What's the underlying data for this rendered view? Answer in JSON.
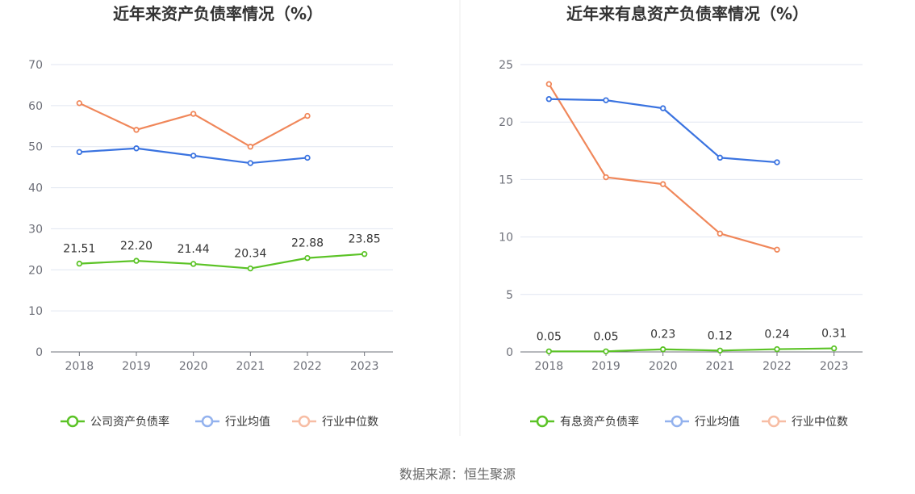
{
  "source_label": "数据来源：恒生聚源",
  "chart_data": [
    {
      "type": "line",
      "title": "近年来资产负债率情况（%）",
      "categories": [
        "2018",
        "2019",
        "2020",
        "2021",
        "2022",
        "2023"
      ],
      "ylim": [
        0,
        70
      ],
      "yticks": [
        0,
        10,
        20,
        30,
        40,
        50,
        60,
        70
      ],
      "series": [
        {
          "name": "公司资产负债率",
          "color": "#5bc326",
          "values": [
            21.51,
            22.2,
            21.44,
            20.34,
            22.88,
            23.85
          ],
          "labels": [
            "21.51",
            "22.20",
            "21.44",
            "20.34",
            "22.88",
            "23.85"
          ]
        },
        {
          "name": "行业均值",
          "color": "#3a73e0",
          "values": [
            48.7,
            49.6,
            47.8,
            46.0,
            47.3,
            null
          ]
        },
        {
          "name": "行业中位数",
          "color": "#f0875a",
          "values": [
            60.6,
            54.1,
            58.0,
            50.0,
            57.5,
            null
          ]
        }
      ]
    },
    {
      "type": "line",
      "title": "近年来有息资产负债率情况（%）",
      "categories": [
        "2018",
        "2019",
        "2020",
        "2021",
        "2022",
        "2023"
      ],
      "ylim": [
        0,
        25
      ],
      "yticks": [
        0,
        5,
        10,
        15,
        20,
        25
      ],
      "series": [
        {
          "name": "有息资产负债率",
          "color": "#5bc326",
          "values": [
            0.05,
            0.05,
            0.23,
            0.12,
            0.24,
            0.31
          ],
          "labels": [
            "0.05",
            "0.05",
            "0.23",
            "0.12",
            "0.24",
            "0.31"
          ]
        },
        {
          "name": "行业均值",
          "color": "#3a73e0",
          "values": [
            22.0,
            21.9,
            21.2,
            16.9,
            16.5,
            null
          ]
        },
        {
          "name": "行业中位数",
          "color": "#f0875a",
          "values": [
            23.3,
            15.2,
            14.6,
            10.3,
            8.9,
            null
          ]
        }
      ]
    }
  ]
}
